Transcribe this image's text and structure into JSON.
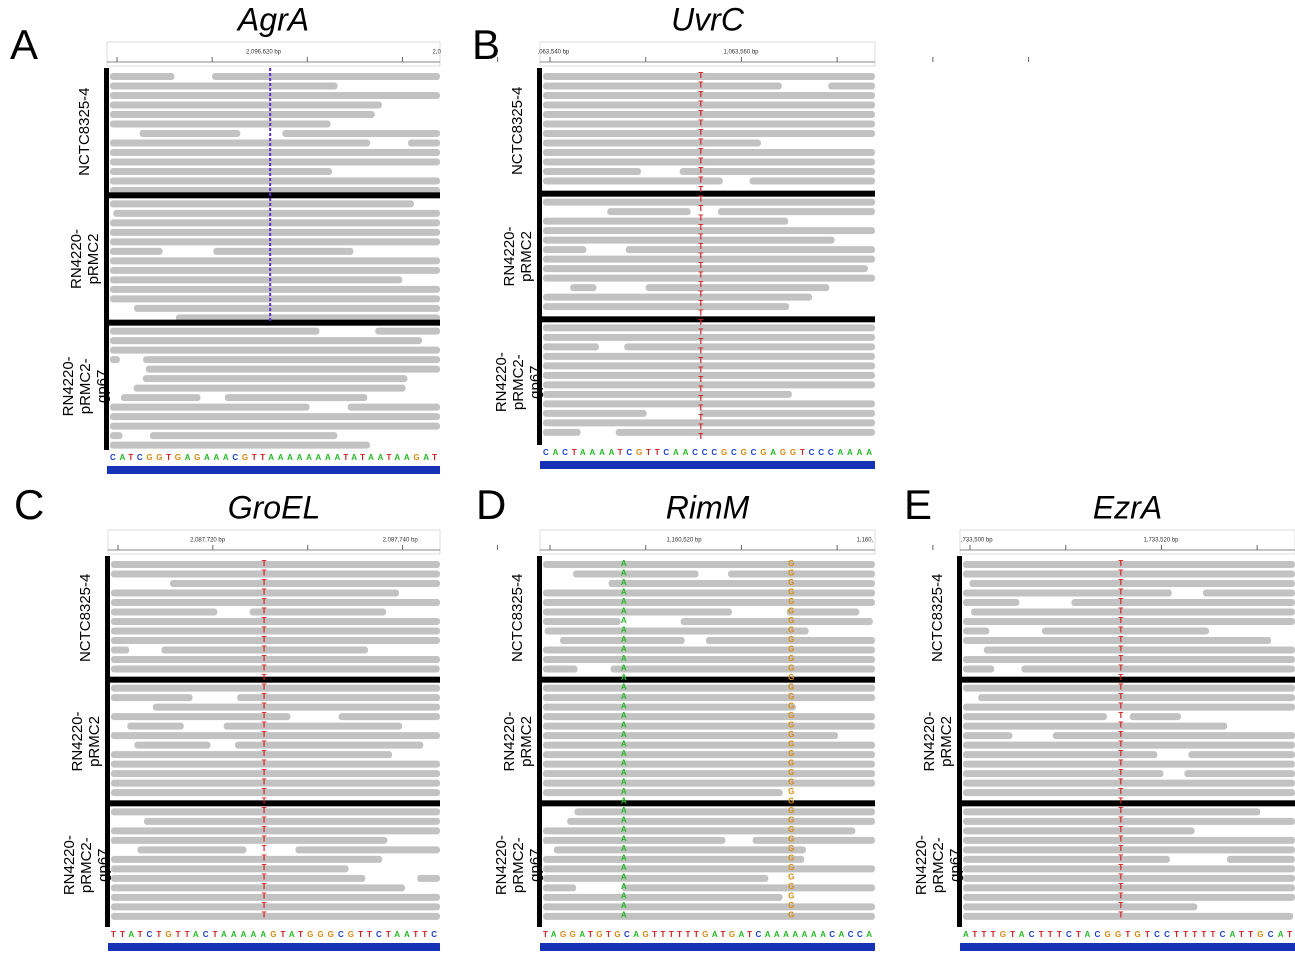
{
  "panels": [
    {
      "letter": "A",
      "gene": "AgrA",
      "ruler": [
        "2,096,620 bp",
        "2,0"
      ],
      "tracks": [
        [
          "NCTC8325-4"
        ],
        [
          "RN4220-",
          "pRMC2"
        ],
        [
          "RN4220-",
          "pRMC2-",
          "gp67"
        ]
      ],
      "sequence": "CATCGGTGAGAAACGTTAAAAAAAATATAATAAGAT"
    },
    {
      "letter": "B",
      "gene": "UvrC",
      "ruler": [
        ",063,540 bp",
        "1,063,560 bp"
      ],
      "tracks": [
        [
          "NCTC8325-4"
        ],
        [
          "RN4220-",
          "pRMC2"
        ],
        [
          "RN4220-",
          "pRMC2-",
          "gp67"
        ]
      ],
      "variants": [
        "T"
      ],
      "sequence": "CACTAAAATCGTTCAACCCGCGCGAGGTCCCAAAA"
    },
    {
      "letter": "C",
      "gene": "GroEL",
      "ruler": [
        "2,087,720 bp",
        "2,087,740 bp"
      ],
      "tracks": [
        [
          "NCTC8325-4"
        ],
        [
          "RN4220-",
          "pRMC2"
        ],
        [
          "RN4220-",
          "pRMC2-",
          "gp67"
        ]
      ],
      "variants": [
        "T"
      ],
      "sequence": "TTATCTGTTACTAAAAAGTATGGGCGTTCTAATTC"
    },
    {
      "letter": "D",
      "gene": "RimM",
      "ruler": [
        "1,160,520 bp",
        "1,160,"
      ],
      "tracks": [
        [
          "NCTC8325-4"
        ],
        [
          "RN4220-",
          "pRMC2"
        ],
        [
          "RN4220-",
          "pRMC2-",
          "gp67"
        ]
      ],
      "variants": [
        "A",
        "G"
      ],
      "sequence": "TAGGATGTGCAGTTTTTTGATGATCAAAAAAACACCA"
    },
    {
      "letter": "E",
      "gene": "EzrA",
      "ruler": [
        ",733,500 bp",
        "1,733,520 bp"
      ],
      "tracks": [
        [
          "NCTC8325-4"
        ],
        [
          "RN4220-",
          "pRMC2"
        ],
        [
          "RN4220-",
          "pRMC2-",
          "gp67"
        ]
      ],
      "variants": [
        "T"
      ],
      "sequence": "ATTTGTACTTTCTACGGTGTCCTTTTTCATTGCAT"
    }
  ]
}
